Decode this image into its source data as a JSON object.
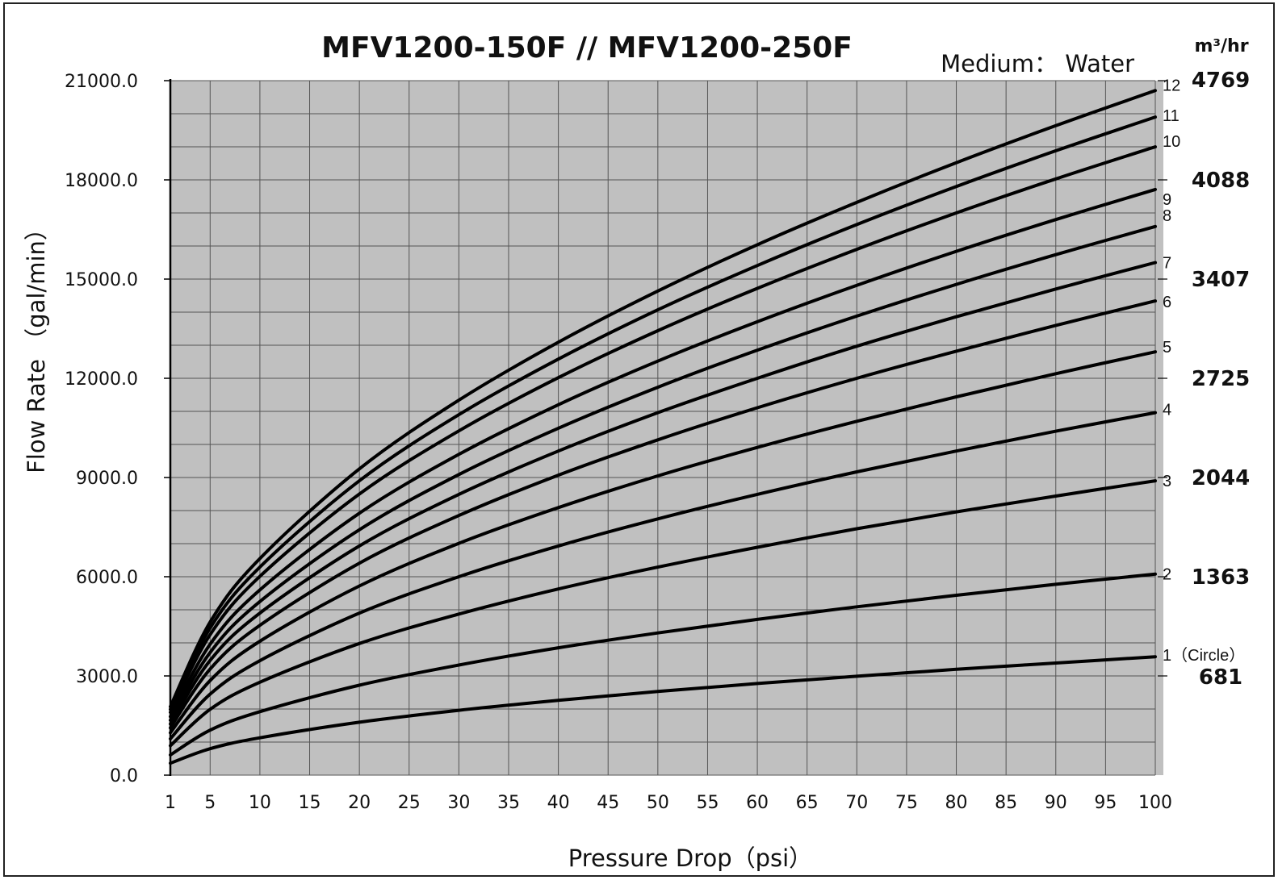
{
  "chart_data": {
    "type": "line",
    "title": "MFV1200-150F // MFV1200-250F",
    "subtitle": "Medium： Water",
    "xlabel": "Pressure Drop（psi）",
    "ylabel": "Flow Rate （gal/min）",
    "xlim": [
      1,
      100
    ],
    "ylim": [
      0,
      21000
    ],
    "grid": true,
    "x_ticks": [
      "1",
      "5",
      "10",
      "15",
      "20",
      "25",
      "30",
      "35",
      "40",
      "45",
      "50",
      "55",
      "60",
      "65",
      "70",
      "75",
      "80",
      "85",
      "90",
      "95",
      "100"
    ],
    "y_ticks": [
      "0.0",
      "3000.0",
      "6000.0",
      "9000.0",
      "12000.0",
      "15000.0",
      "18000.0",
      "21000.0"
    ],
    "secondary_axis": {
      "unit": "m³/hr",
      "ticks": [
        {
          "label": "681",
          "value": 3000
        },
        {
          "label": "1363",
          "value": 6000
        },
        {
          "label": "2044",
          "value": 9000
        },
        {
          "label": "2725",
          "value": 12000
        },
        {
          "label": "3407",
          "value": 15000
        },
        {
          "label": "4088",
          "value": 18000
        },
        {
          "label": "4769",
          "value": 21000
        }
      ]
    },
    "x": [
      1,
      5,
      10,
      20,
      30,
      40,
      50,
      60,
      70,
      80,
      90,
      100
    ],
    "series": [
      {
        "name": "1（Circle）",
        "values": [
          360,
          800,
          1130,
          1600,
          1960,
          2260,
          2530,
          2770,
          2990,
          3200,
          3390,
          3580
        ]
      },
      {
        "name": "2",
        "values": [
          610,
          1360,
          1920,
          2720,
          3330,
          3850,
          4300,
          4710,
          5090,
          5440,
          5770,
          6080
        ]
      },
      {
        "name": "3",
        "values": [
          890,
          1990,
          2810,
          3980,
          4870,
          5630,
          6290,
          6890,
          7450,
          7960,
          8440,
          8900
        ]
      },
      {
        "name": "4",
        "values": [
          1100,
          2450,
          3460,
          4900,
          6000,
          6930,
          7750,
          8490,
          9170,
          9800,
          10400,
          10960
        ]
      },
      {
        "name": "5",
        "values": [
          1280,
          2860,
          4050,
          5720,
          7010,
          8090,
          9050,
          9910,
          10700,
          11440,
          12140,
          12800
        ]
      },
      {
        "name": "6",
        "values": [
          1430,
          3210,
          4530,
          6410,
          7850,
          9070,
          10140,
          11110,
          12000,
          12820,
          13600,
          14340
        ]
      },
      {
        "name": "7",
        "values": [
          1550,
          3470,
          4900,
          6930,
          8490,
          9800,
          10960,
          12000,
          12970,
          13860,
          14700,
          15500
        ]
      },
      {
        "name": "8",
        "values": [
          1660,
          3710,
          5250,
          7420,
          9090,
          10490,
          11730,
          12850,
          13880,
          14840,
          15740,
          16590
        ]
      },
      {
        "name": "9",
        "values": [
          1770,
          3960,
          5600,
          7920,
          9700,
          11200,
          12520,
          13710,
          14810,
          15840,
          16800,
          17710
        ]
      },
      {
        "name": "10",
        "values": [
          1900,
          4250,
          6010,
          8500,
          10410,
          12020,
          13440,
          14720,
          15900,
          17000,
          18030,
          19000
        ]
      },
      {
        "name": "11",
        "values": [
          1990,
          4450,
          6290,
          8900,
          10900,
          12580,
          14070,
          15410,
          16650,
          17800,
          18880,
          19900
        ]
      },
      {
        "name": "12",
        "values": [
          2070,
          4630,
          6550,
          9260,
          11340,
          13090,
          14640,
          16040,
          17320,
          18520,
          19640,
          20700
        ]
      }
    ]
  }
}
